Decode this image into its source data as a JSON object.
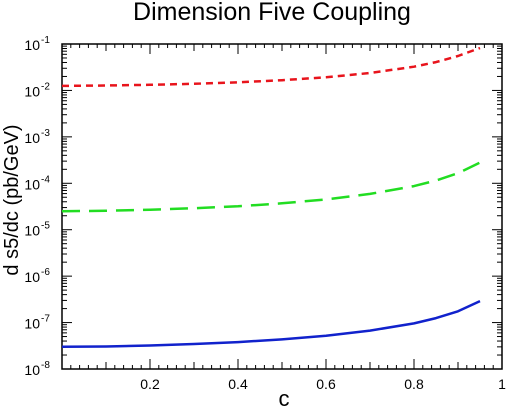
{
  "chart_data": {
    "type": "line",
    "title": "Dimension Five Coupling",
    "xlabel": "c",
    "ylabel": "d s5/dc (pb/GeV)",
    "xlim": [
      0,
      1
    ],
    "ylim": [
      1e-08,
      0.1
    ],
    "yscale": "log",
    "x_ticks": [
      0.2,
      0.4,
      0.6,
      0.8,
      1
    ],
    "x_tick_labels": [
      "0.2",
      "0.4",
      "0.6",
      "0.8",
      "1"
    ],
    "y_ticks": [
      {
        "value": 0.1,
        "base": "10",
        "exp": "-1"
      },
      {
        "value": 0.01,
        "base": "10",
        "exp": "-2"
      },
      {
        "value": 0.001,
        "base": "10",
        "exp": "-3"
      },
      {
        "value": 0.0001,
        "base": "10",
        "exp": "-4"
      },
      {
        "value": 1e-05,
        "base": "10",
        "exp": "-5"
      },
      {
        "value": 1e-06,
        "base": "10",
        "exp": "-6"
      },
      {
        "value": 1e-07,
        "base": "10",
        "exp": "-7"
      },
      {
        "value": 1e-08,
        "base": "10",
        "exp": "-8"
      }
    ],
    "grid": false,
    "series": [
      {
        "color": "#e8141c",
        "dash": "short-dash",
        "x": [
          0.0,
          0.1,
          0.2,
          0.3,
          0.4,
          0.5,
          0.6,
          0.7,
          0.8,
          0.85,
          0.9,
          0.95
        ],
        "y": [
          0.0125,
          0.0128,
          0.0132,
          0.0139,
          0.015,
          0.0166,
          0.0192,
          0.0237,
          0.0324,
          0.0408,
          0.0551,
          0.082
        ]
      },
      {
        "color": "#22dd22",
        "dash": "long-dash",
        "x": [
          0.0,
          0.1,
          0.2,
          0.3,
          0.4,
          0.5,
          0.6,
          0.7,
          0.8,
          0.85,
          0.9,
          0.95
        ],
        "y": [
          2.5e-05,
          2.55e-05,
          2.7e-05,
          2.9e-05,
          3.2e-05,
          3.7e-05,
          4.5e-05,
          5.9e-05,
          8.7e-05,
          0.000115,
          0.000165,
          0.00028
        ]
      },
      {
        "color": "#1122cc",
        "dash": "solid",
        "x": [
          0.0,
          0.1,
          0.2,
          0.3,
          0.4,
          0.5,
          0.6,
          0.7,
          0.8,
          0.85,
          0.9,
          0.95
        ],
        "y": [
          3e-08,
          3.05e-08,
          3.2e-08,
          3.45e-08,
          3.8e-08,
          4.35e-08,
          5.2e-08,
          6.7e-08,
          9.6e-08,
          1.25e-07,
          1.75e-07,
          2.9e-07
        ]
      }
    ]
  }
}
